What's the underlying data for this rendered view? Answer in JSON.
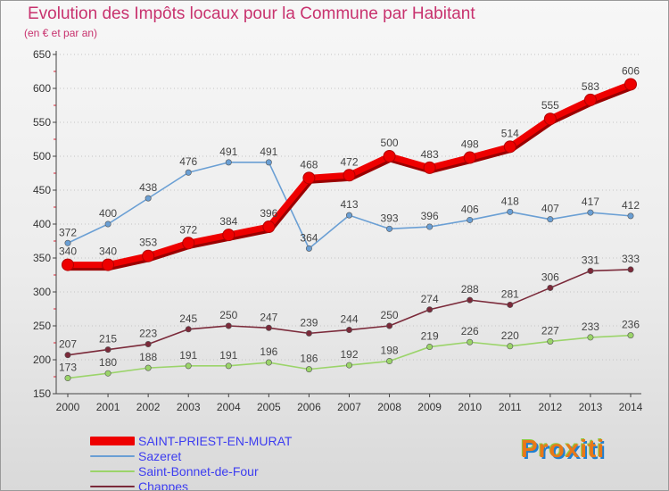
{
  "chart_data": {
    "type": "line",
    "title": "Evolution des Impôts locaux pour la Commune par Habitant",
    "subtitle": "(en € et par an)",
    "xlabel": "",
    "ylabel": "",
    "ylim": [
      150,
      650
    ],
    "y_ticks": [
      "150",
      "200",
      "250",
      "300",
      "350",
      "400",
      "450",
      "500",
      "550",
      "600",
      "650"
    ],
    "grid": "horizontal dotted",
    "legend": "bottom-left",
    "x": [
      "2000",
      "2001",
      "2002",
      "2003",
      "2004",
      "2005",
      "2006",
      "2007",
      "2008",
      "2009",
      "2010",
      "2011",
      "2012",
      "2013",
      "2014"
    ],
    "series": [
      {
        "name": "SAINT-PRIEST-EN-MURAT",
        "color": "#ee0000",
        "values": [
          340,
          340,
          353,
          372,
          384,
          396,
          468,
          472,
          500,
          483,
          498,
          514,
          555,
          583,
          606
        ],
        "labels": [
          "340",
          "340",
          "353",
          "372",
          "384",
          "396",
          "468",
          "472",
          "500",
          "483",
          "498",
          "514",
          "555",
          "583",
          "606"
        ]
      },
      {
        "name": "Sazeret",
        "color": "#6a9fd4",
        "values": [
          372,
          400,
          438,
          476,
          491,
          491,
          364,
          413,
          393,
          396,
          406,
          418,
          407,
          417,
          412
        ],
        "labels": [
          "372",
          "400",
          "438",
          "476",
          "491",
          "491",
          "364",
          "413",
          "393",
          "396",
          "406",
          "418",
          "407",
          "417",
          "412"
        ]
      },
      {
        "name": "Saint-Bonnet-de-Four",
        "color": "#9bd46a",
        "values": [
          173,
          180,
          188,
          191,
          191,
          196,
          186,
          192,
          198,
          219,
          226,
          220,
          227,
          233,
          236
        ],
        "labels": [
          "173",
          "180",
          "188",
          "191",
          "191",
          "196",
          "186",
          "192",
          "198",
          "219",
          "226",
          "220",
          "227",
          "233",
          "236"
        ]
      },
      {
        "name": "Chappes",
        "color": "#7b2a3a",
        "values": [
          207,
          215,
          223,
          245,
          250,
          247,
          239,
          244,
          250,
          274,
          288,
          281,
          306,
          331,
          333
        ],
        "labels": [
          "207",
          "215",
          "223",
          "245",
          "250",
          "247",
          "239",
          "244",
          "250",
          "274",
          "288",
          "281",
          "306",
          "331",
          "333"
        ]
      }
    ]
  },
  "logo": {
    "text": "Proxiti"
  }
}
